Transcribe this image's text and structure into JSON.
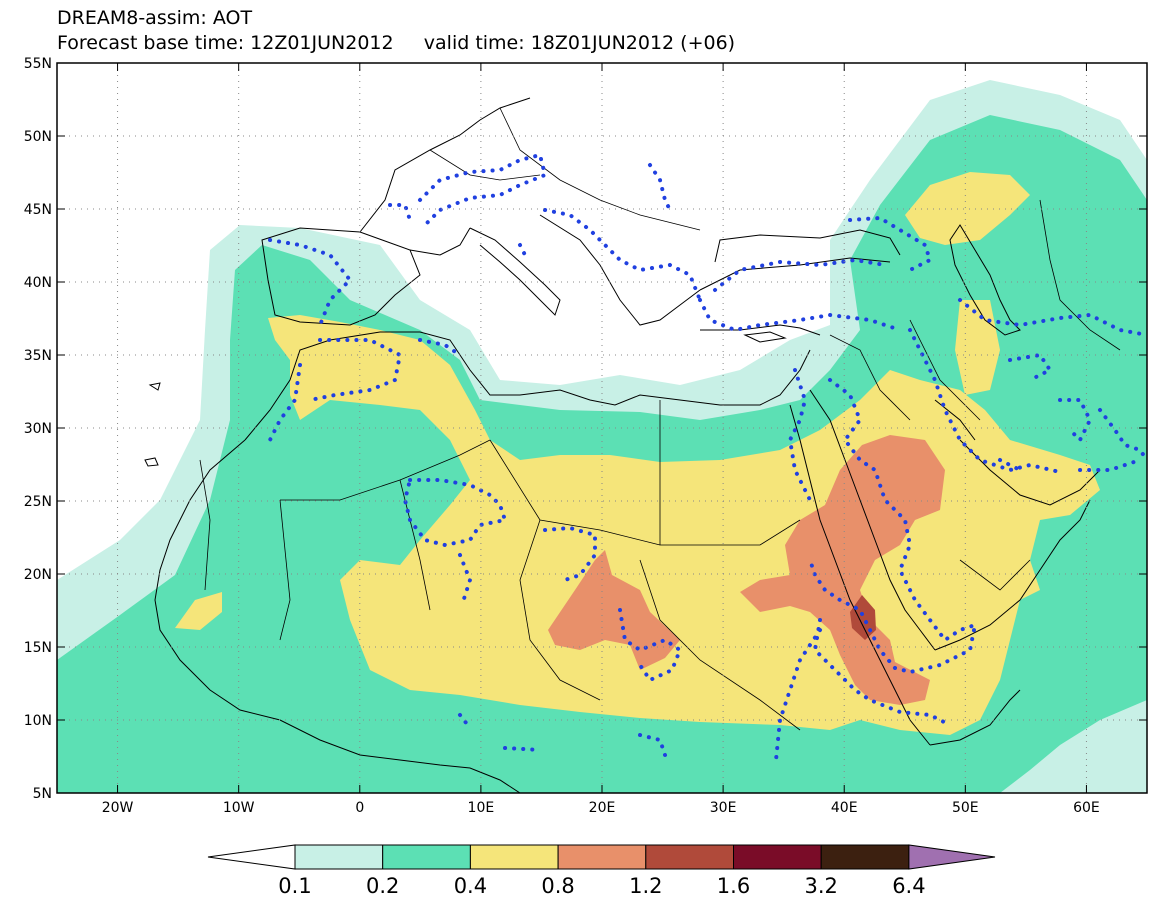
{
  "title": "DREAM8-assim: AOT",
  "subtitle": "Forecast base time: 12Z01JUN2012     valid time: 18Z01JUN2012 (+06)",
  "map": {
    "lon_range": [
      -25,
      65
    ],
    "lat_range": [
      5,
      55
    ],
    "lat_labels": [
      "55N",
      "50N",
      "45N",
      "40N",
      "35N",
      "30N",
      "25N",
      "20N",
      "15N",
      "10N",
      "5N"
    ],
    "lon_labels": [
      "20W",
      "10W",
      "0",
      "10E",
      "20E",
      "30E",
      "40E",
      "50E",
      "60E"
    ],
    "grid_lines": true
  },
  "colorbar": {
    "labels": [
      "0.1",
      "0.2",
      "0.4",
      "0.8",
      "1.2",
      "1.6",
      "3.2",
      "6.4"
    ],
    "colors": [
      "#ffffff",
      "#c8f0e6",
      "#5ce0b4",
      "#f5e57a",
      "#e8906a",
      "#b04a3a",
      "#7a0c28",
      "#3c2010",
      "#a070b0"
    ]
  },
  "colors": {
    "coast": "#000000",
    "dots": "#2040e0",
    "level1": "#c8f0e6",
    "level2": "#5ce0b4",
    "level3": "#f5e57a",
    "level4": "#e8906a",
    "level5": "#b04a3a",
    "level6": "#7a3020"
  }
}
